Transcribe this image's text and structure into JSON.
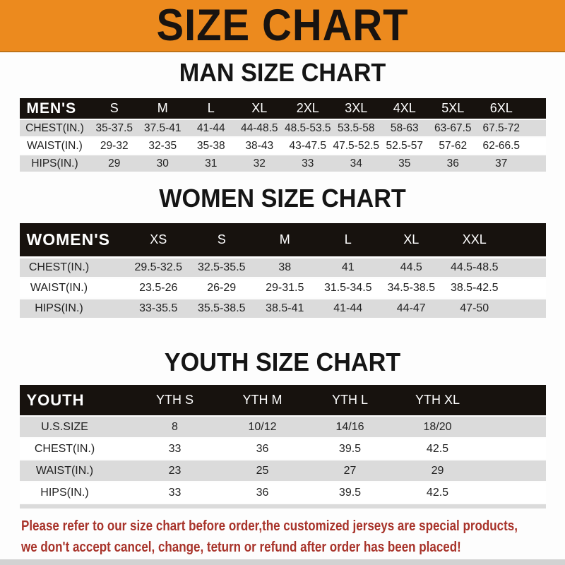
{
  "banner": {
    "title": "SIZE CHART"
  },
  "sections": [
    {
      "heading": "MAN SIZE CHART",
      "header_label": "MEN'S",
      "columns": [
        "S",
        "M",
        "L",
        "XL",
        "2XL",
        "3XL",
        "4XL",
        "5XL",
        "6XL"
      ],
      "rows": [
        {
          "label": "CHEST(IN.)",
          "values": [
            "35-37.5",
            "37.5-41",
            "41-44",
            "44-48.5",
            "48.5-53.5",
            "53.5-58",
            "58-63",
            "63-67.5",
            "67.5-72"
          ]
        },
        {
          "label": "WAIST(IN.)",
          "values": [
            "29-32",
            "32-35",
            "35-38",
            "38-43",
            "43-47.5",
            "47.5-52.5",
            "52.5-57",
            "57-62",
            "62-66.5"
          ]
        },
        {
          "label": "HIPS(IN.)",
          "values": [
            "29",
            "30",
            "31",
            "32",
            "33",
            "34",
            "35",
            "36",
            "37"
          ]
        }
      ]
    },
    {
      "heading": "WOMEN SIZE CHART",
      "header_label": "WOMEN'S",
      "columns": [
        "XS",
        "S",
        "M",
        "L",
        "XL",
        "XXL"
      ],
      "rows": [
        {
          "label": "CHEST(IN.)",
          "values": [
            "29.5-32.5",
            "32.5-35.5",
            "38",
            "41",
            "44.5",
            "44.5-48.5"
          ]
        },
        {
          "label": "WAIST(IN.)",
          "values": [
            "23.5-26",
            "26-29",
            "29-31.5",
            "31.5-34.5",
            "34.5-38.5",
            "38.5-42.5"
          ]
        },
        {
          "label": "HIPS(IN.)",
          "values": [
            "33-35.5",
            "35.5-38.5",
            "38.5-41",
            "41-44",
            "44-47",
            "47-50"
          ]
        }
      ]
    },
    {
      "heading": "YOUTH SIZE CHART",
      "header_label": "YOUTH",
      "columns": [
        "YTH S",
        "YTH M",
        "YTH L",
        "YTH XL"
      ],
      "rows": [
        {
          "label": "U.S.SIZE",
          "values": [
            "8",
            "10/12",
            "14/16",
            "18/20"
          ]
        },
        {
          "label": "CHEST(IN.)",
          "values": [
            "33",
            "36",
            "39.5",
            "42.5"
          ]
        },
        {
          "label": "WAIST(IN.)",
          "values": [
            "23",
            "25",
            "27",
            "29"
          ]
        },
        {
          "label": "HIPS(IN.)",
          "values": [
            "33",
            "36",
            "39.5",
            "42.5"
          ]
        }
      ]
    }
  ],
  "footer": {
    "line1": "Please refer to our size chart before order,the customized jerseys are special products,",
    "line2": "we don't accept cancel, change, teturn or refund after order has been placed!"
  },
  "colors": {
    "banner_orange": "#ec8a1e",
    "header_black": "#17120e",
    "row_gray": "#dbdbdb",
    "footer_red": "#a8332a"
  }
}
